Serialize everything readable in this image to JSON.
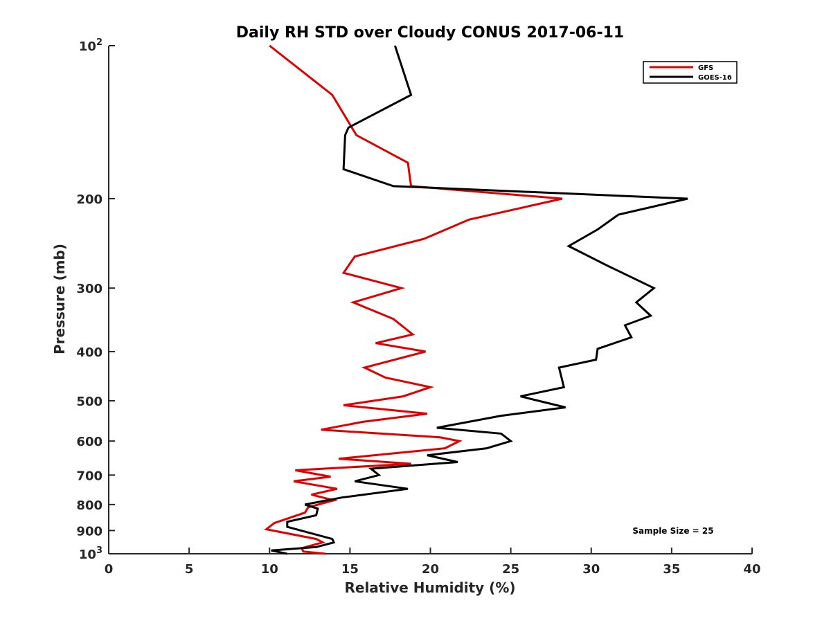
{
  "chart_data": {
    "type": "line",
    "title": "Daily RH STD over Cloudy CONUS 2017-06-11",
    "xlabel": "Relative Humidity (%)",
    "ylabel": "Pressure (mb)",
    "xlim": [
      0,
      40
    ],
    "ylim": [
      100,
      1000
    ],
    "y_scale": "log",
    "y_reversed": true,
    "grid": false,
    "legend_position": "top-right",
    "x_ticks": [
      {
        "value": 0,
        "label": "0"
      },
      {
        "value": 5,
        "label": "5"
      },
      {
        "value": 10,
        "label": "10"
      },
      {
        "value": 15,
        "label": "15"
      },
      {
        "value": 20,
        "label": "20"
      },
      {
        "value": 25,
        "label": "25"
      },
      {
        "value": 30,
        "label": "30"
      },
      {
        "value": 35,
        "label": "35"
      },
      {
        "value": 40,
        "label": "40"
      }
    ],
    "y_ticks": [
      {
        "value": 100,
        "label": "10",
        "sup": "2"
      },
      {
        "value": 200,
        "label": "200",
        "sup": ""
      },
      {
        "value": 300,
        "label": "300",
        "sup": ""
      },
      {
        "value": 400,
        "label": "400",
        "sup": ""
      },
      {
        "value": 500,
        "label": "500",
        "sup": ""
      },
      {
        "value": 600,
        "label": "600",
        "sup": ""
      },
      {
        "value": 700,
        "label": "700",
        "sup": ""
      },
      {
        "value": 800,
        "label": "800",
        "sup": ""
      },
      {
        "value": 900,
        "label": "900",
        "sup": ""
      },
      {
        "value": 1000,
        "label": "10",
        "sup": "3"
      }
    ],
    "annotation": "Sample Size = 25",
    "series": [
      {
        "name": "GFS",
        "color": "#e00000",
        "points": [
          [
            10.0,
            100
          ],
          [
            13.9,
            125
          ],
          [
            15.4,
            150
          ],
          [
            18.6,
            170
          ],
          [
            18.8,
            189
          ],
          [
            28.2,
            200
          ],
          [
            22.4,
            220
          ],
          [
            19.6,
            240
          ],
          [
            15.3,
            260
          ],
          [
            14.6,
            280
          ],
          [
            18.2,
            300
          ],
          [
            15.2,
            320
          ],
          [
            17.7,
            345
          ],
          [
            18.9,
            370
          ],
          [
            16.6,
            385
          ],
          [
            19.7,
            400
          ],
          [
            15.9,
            430
          ],
          [
            17.2,
            450
          ],
          [
            20.0,
            470
          ],
          [
            18.3,
            490
          ],
          [
            14.6,
            510
          ],
          [
            19.8,
            530
          ],
          [
            15.8,
            550
          ],
          [
            13.2,
            570
          ],
          [
            20.6,
            590
          ],
          [
            21.8,
            600
          ],
          [
            20.9,
            620
          ],
          [
            14.3,
            650
          ],
          [
            18.8,
            665
          ],
          [
            11.6,
            685
          ],
          [
            13.8,
            705
          ],
          [
            11.5,
            720
          ],
          [
            14.2,
            745
          ],
          [
            12.6,
            765
          ],
          [
            14.0,
            785
          ],
          [
            12.4,
            810
          ],
          [
            12.2,
            830
          ],
          [
            10.3,
            870
          ],
          [
            9.8,
            895
          ],
          [
            12.9,
            935
          ],
          [
            13.3,
            950
          ],
          [
            12.0,
            975
          ],
          [
            12.1,
            990
          ],
          [
            13.5,
            1000
          ]
        ]
      },
      {
        "name": "GOES-16",
        "color": "#000000",
        "points": [
          [
            17.8,
            100
          ],
          [
            18.8,
            125
          ],
          [
            14.9,
            145
          ],
          [
            14.7,
            150
          ],
          [
            14.6,
            175
          ],
          [
            17.7,
            189
          ],
          [
            36.0,
            200
          ],
          [
            31.7,
            215
          ],
          [
            30.4,
            230
          ],
          [
            28.6,
            248
          ],
          [
            30.9,
            270
          ],
          [
            33.9,
            300
          ],
          [
            32.8,
            320
          ],
          [
            33.7,
            340
          ],
          [
            32.1,
            355
          ],
          [
            32.5,
            375
          ],
          [
            30.4,
            395
          ],
          [
            30.3,
            415
          ],
          [
            28.0,
            430
          ],
          [
            28.3,
            470
          ],
          [
            25.6,
            490
          ],
          [
            28.4,
            515
          ],
          [
            24.4,
            535
          ],
          [
            20.4,
            565
          ],
          [
            24.4,
            580
          ],
          [
            25.0,
            600
          ],
          [
            23.5,
            620
          ],
          [
            19.8,
            640
          ],
          [
            21.7,
            660
          ],
          [
            16.3,
            680
          ],
          [
            16.8,
            700
          ],
          [
            15.3,
            720
          ],
          [
            18.6,
            745
          ],
          [
            14.5,
            775
          ],
          [
            12.2,
            800
          ],
          [
            13.0,
            815
          ],
          [
            12.9,
            840
          ],
          [
            11.1,
            865
          ],
          [
            11.1,
            885
          ],
          [
            13.9,
            935
          ],
          [
            14.0,
            950
          ],
          [
            12.9,
            970
          ],
          [
            10.1,
            985
          ],
          [
            11.1,
            1000
          ]
        ]
      }
    ]
  }
}
